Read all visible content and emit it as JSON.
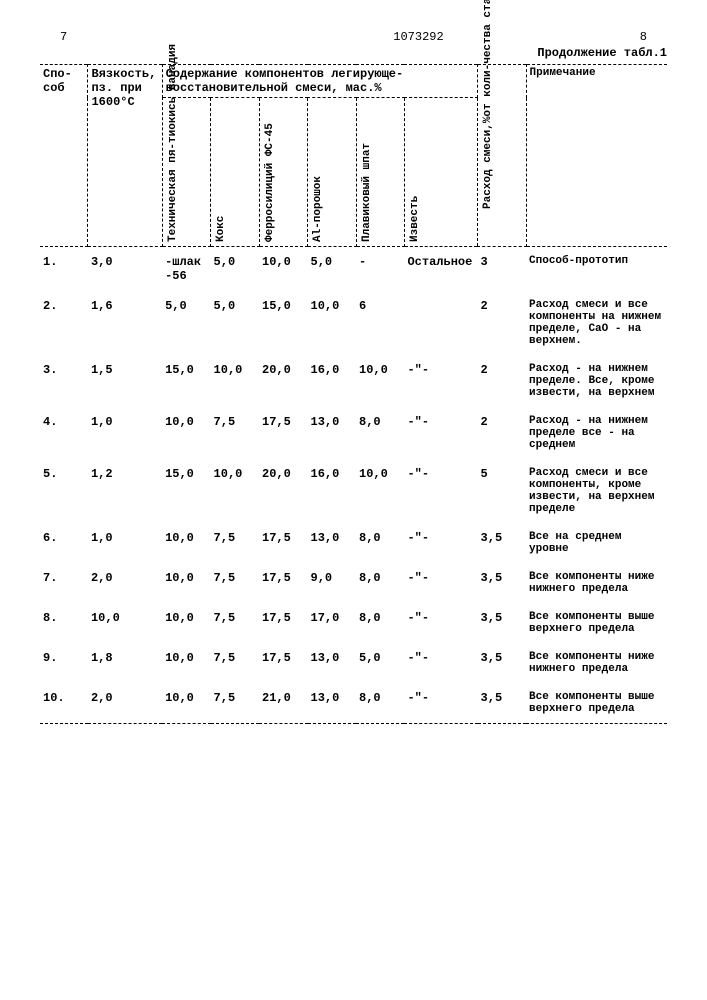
{
  "header": {
    "page_left": "7",
    "doc_number": "1073292",
    "page_right": "8",
    "continuation": "Продолжение табл.1"
  },
  "columns": {
    "method": "Спо-соб",
    "viscosity": "Вязкость, пз. при 1600°С",
    "components_header": "Содержание компонентов легирующе-восстановительной смеси, мас.%",
    "c1": "Техническая пя-тиокись ванадия",
    "c2": "Кокс",
    "c3": "Ферросилиций ФС-45",
    "c4": "Al-порошок",
    "c5": "Плавиковый шпат",
    "c6": "Известь",
    "flow": "Расход смеси,%от коли-чества стали",
    "note": "Примечание"
  },
  "rows": [
    {
      "n": "1.",
      "visc": "3,0",
      "c1": "-шлак -56",
      "c2": "5,0",
      "c3": "10,0",
      "c4": "5,0",
      "c5": "-",
      "c6": "Остальное",
      "flow": "3",
      "note": "Способ-прототип"
    },
    {
      "n": "2.",
      "visc": "1,6",
      "c1": "5,0",
      "c2": "5,0",
      "c3": "15,0",
      "c4": "10,0",
      "c5": "6",
      "c6": "",
      "flow": "2",
      "note": "Расход смеси и все компоненты на нижнем пределе, CaO - на верхнем."
    },
    {
      "n": "3.",
      "visc": "1,5",
      "c1": "15,0",
      "c2": "10,0",
      "c3": "20,0",
      "c4": "16,0",
      "c5": "10,0",
      "c6": "-\"-",
      "flow": "2",
      "note": "Расход - на нижнем пределе. Все, кроме извести, на верхнем"
    },
    {
      "n": "4.",
      "visc": "1,0",
      "c1": "10,0",
      "c2": "7,5",
      "c3": "17,5",
      "c4": "13,0",
      "c5": "8,0",
      "c6": "-\"-",
      "flow": "2",
      "note": "Расход - на нижнем пределе все - на среднем"
    },
    {
      "n": "5.",
      "visc": "1,2",
      "c1": "15,0",
      "c2": "10,0",
      "c3": "20,0",
      "c4": "16,0",
      "c5": "10,0",
      "c6": "-\"-",
      "flow": "5",
      "note": "Расход смеси и все компоненты, кроме извести, на верхнем пределе"
    },
    {
      "n": "6.",
      "visc": "1,0",
      "c1": "10,0",
      "c2": "7,5",
      "c3": "17,5",
      "c4": "13,0",
      "c5": "8,0",
      "c6": "-\"-",
      "flow": "3,5",
      "note": "Все на среднем уровне"
    },
    {
      "n": "7.",
      "visc": "2,0",
      "c1": "10,0",
      "c2": "7,5",
      "c3": "17,5",
      "c4": "9,0",
      "c5": "8,0",
      "c6": "-\"-",
      "flow": "3,5",
      "note": "Все компоненты ниже нижнего предела"
    },
    {
      "n": "8.",
      "visc": "10,0",
      "c1": "10,0",
      "c2": "7,5",
      "c3": "17,5",
      "c4": "17,0",
      "c5": "8,0",
      "c6": "-\"-",
      "flow": "3,5",
      "note": "Все компоненты выше верхнего предела"
    },
    {
      "n": "9.",
      "visc": "1,8",
      "c1": "10,0",
      "c2": "7,5",
      "c3": "17,5",
      "c4": "13,0",
      "c5": "5,0",
      "c6": "-\"-",
      "flow": "3,5",
      "note": "Все компоненты ниже нижнего предела"
    },
    {
      "n": "10.",
      "visc": "2,0",
      "c1": "10,0",
      "c2": "7,5",
      "c3": "21,0",
      "c4": "13,0",
      "c5": "8,0",
      "c6": "-\"-",
      "flow": "3,5",
      "note": "Все компоненты выше верхнего предела"
    }
  ]
}
